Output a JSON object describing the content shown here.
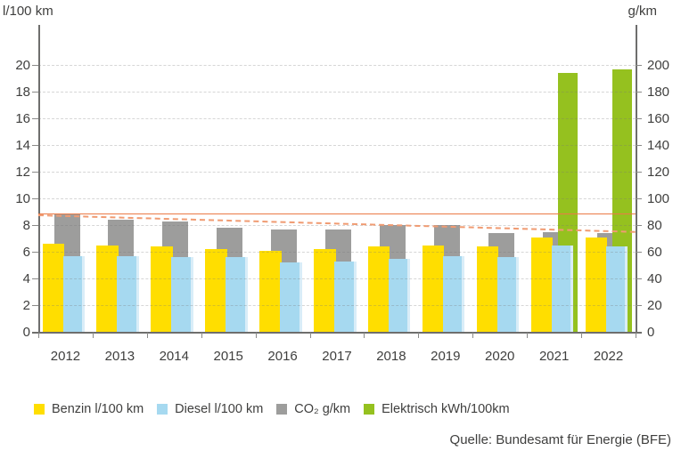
{
  "chart_data": {
    "type": "bar",
    "title": "",
    "left_axis": {
      "label": "l/100 km",
      "min": 0,
      "max": 20,
      "step": 2
    },
    "right_axis": {
      "label": "g/km",
      "min": 0,
      "max": 200,
      "step": 20
    },
    "categories": [
      "2012",
      "2013",
      "2014",
      "2015",
      "2016",
      "2017",
      "2018",
      "2019",
      "2020",
      "2021",
      "2022"
    ],
    "series": [
      {
        "name": "Benzin l/100 km",
        "axis": "left",
        "color": "#FFDE00",
        "values": [
          6.6,
          6.5,
          6.4,
          6.2,
          6.1,
          6.2,
          6.4,
          6.5,
          6.4,
          7.1,
          7.1
        ]
      },
      {
        "name": "Diesel l/100 km",
        "axis": "left",
        "color": "#A6D9F0",
        "values": [
          5.7,
          5.7,
          5.6,
          5.6,
          5.2,
          5.3,
          5.5,
          5.7,
          5.6,
          6.5,
          6.4
        ]
      },
      {
        "name": "CO₂ g/km",
        "axis": "right",
        "color": "#9D9D9C",
        "values": [
          88,
          84,
          83,
          78,
          77,
          77,
          80,
          80,
          74,
          75,
          74
        ]
      },
      {
        "name": "Elektrisch kWh/100km",
        "axis": "left",
        "color": "#95C11F",
        "values": [
          null,
          null,
          null,
          null,
          null,
          null,
          null,
          null,
          null,
          19.4,
          19.7
        ]
      }
    ],
    "annotations": {
      "solid_reference_line": {
        "value_g_per_km": 88.5,
        "color": "#EB7A45",
        "style": "solid"
      },
      "dashed_trend_line": {
        "from_g_per_km": 88.0,
        "to_g_per_km": 75.5,
        "color": "#F09B72",
        "style": "dashed"
      }
    },
    "grid": true,
    "legend_position": "bottom"
  },
  "source": "Quelle: Bundesamt für Energie (BFE)",
  "style_colors": {
    "axis": "#6E6E6D",
    "text": "#3F3F3E",
    "gridline": "#D5D5D5",
    "diesel_bar_edge": "#D9EDF8"
  }
}
